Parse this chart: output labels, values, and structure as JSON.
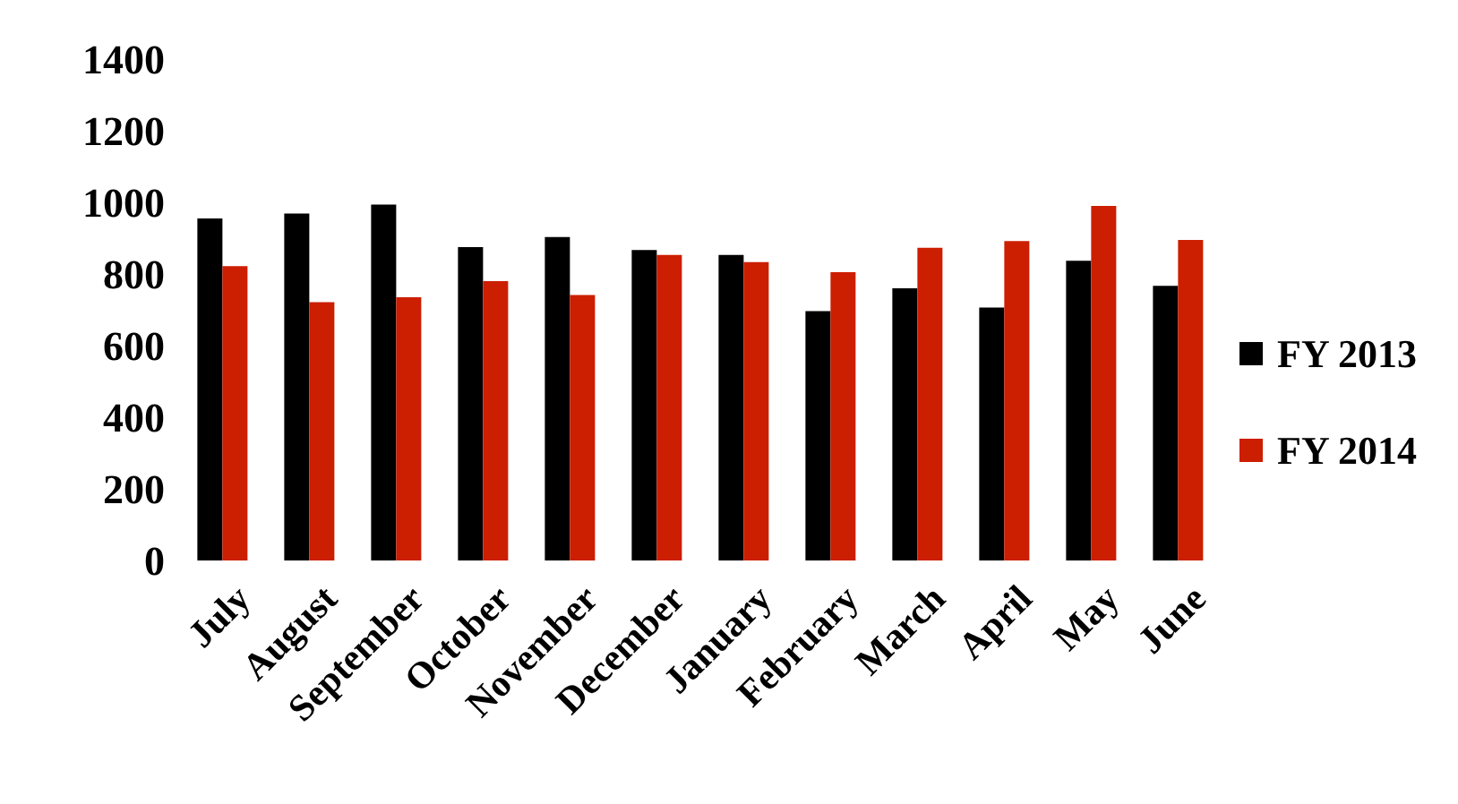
{
  "chart_data": {
    "type": "bar",
    "categories": [
      "July",
      "August",
      "September",
      "October",
      "November",
      "December",
      "January",
      "February",
      "March",
      "April",
      "May",
      "June"
    ],
    "series": [
      {
        "name": "FY 2013",
        "color": "#000000",
        "values": [
          955,
          969,
          994,
          875,
          903,
          867,
          853,
          696,
          760,
          706,
          837,
          767
        ]
      },
      {
        "name": "FY 2014",
        "color": "#cc1e00",
        "values": [
          822,
          721,
          735,
          780,
          741,
          853,
          833,
          805,
          873,
          892,
          990,
          895
        ]
      }
    ],
    "ylim": [
      0,
      1400
    ],
    "yticks": [
      0,
      200,
      400,
      600,
      800,
      1000,
      1200,
      1400
    ],
    "grid": false,
    "legend": "right"
  }
}
